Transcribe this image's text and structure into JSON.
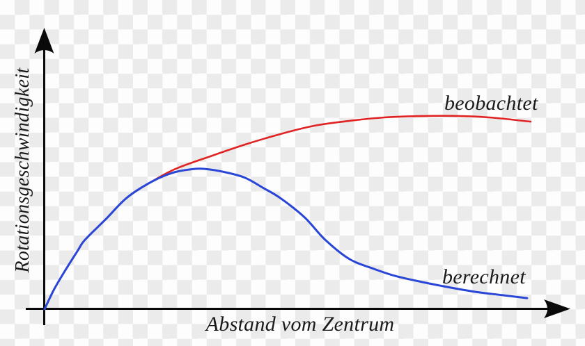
{
  "chart_data": {
    "type": "line",
    "title": "",
    "xlabel": "Abstand vom Zentrum",
    "ylabel": "Rotationsgeschwindigkeit",
    "x_axis": {
      "range": [
        0,
        100
      ],
      "ticks": "none",
      "arrow": true
    },
    "y_axis": {
      "range": [
        0,
        100
      ],
      "ticks": "none",
      "arrow": true
    },
    "grid": false,
    "legend": "inline-curve-labels",
    "series": [
      {
        "name": "beobachtet",
        "color": "#e02222",
        "points": [
          [
            0,
            0
          ],
          [
            1.8,
            8.9
          ],
          [
            3.9,
            17.4
          ],
          [
            6.7,
            27.9
          ],
          [
            8.1,
            32.8
          ],
          [
            12.3,
            42.6
          ],
          [
            16.4,
            52.5
          ],
          [
            21.3,
            60.0
          ],
          [
            26.2,
            66.2
          ],
          [
            33.1,
            72.1
          ],
          [
            40.1,
            77.7
          ],
          [
            47.1,
            82.6
          ],
          [
            54.0,
            86.6
          ],
          [
            61.0,
            88.9
          ],
          [
            68.0,
            90.5
          ],
          [
            74.9,
            91.1
          ],
          [
            81.9,
            91.2
          ],
          [
            88.9,
            90.5
          ],
          [
            97.2,
            88.5
          ]
        ]
      },
      {
        "name": "berechnet",
        "color": "#2a46d6",
        "points": [
          [
            0,
            0
          ],
          [
            1.8,
            8.9
          ],
          [
            3.9,
            17.4
          ],
          [
            6.7,
            27.9
          ],
          [
            8.1,
            32.8
          ],
          [
            12.3,
            42.6
          ],
          [
            16.4,
            52.5
          ],
          [
            21.3,
            60.0
          ],
          [
            25.5,
            64.3
          ],
          [
            29.0,
            65.9
          ],
          [
            32.0,
            66.2
          ],
          [
            36.2,
            64.6
          ],
          [
            40.1,
            62.0
          ],
          [
            43.6,
            57.4
          ],
          [
            47.1,
            52.5
          ],
          [
            52.0,
            43.3
          ],
          [
            56.1,
            32.8
          ],
          [
            61.0,
            23.6
          ],
          [
            65.9,
            19.0
          ],
          [
            70.1,
            15.7
          ],
          [
            74.9,
            13.1
          ],
          [
            80.5,
            10.5
          ],
          [
            86.1,
            8.2
          ],
          [
            91.6,
            6.6
          ],
          [
            96.5,
            5.2
          ]
        ]
      }
    ]
  }
}
